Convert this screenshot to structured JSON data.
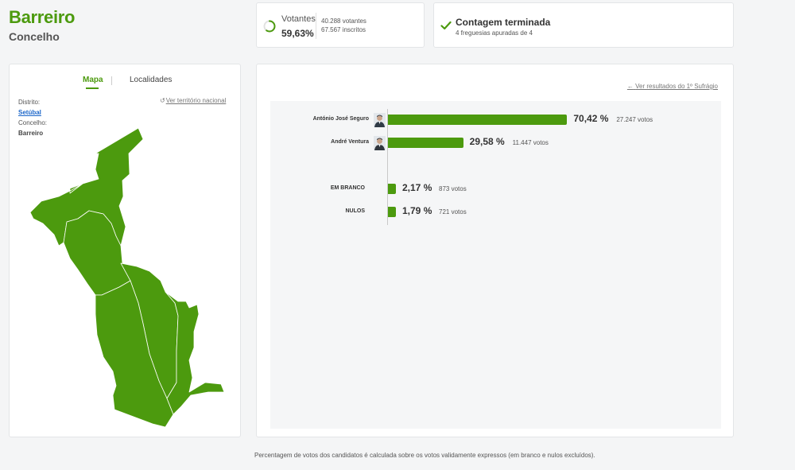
{
  "header": {
    "title": "Barreiro",
    "subtitle": "Concelho"
  },
  "votantes": {
    "label": "Votantes",
    "percent": "59,63%",
    "turnout_fraction": 0.5963,
    "votantes_line": "40.288 votantes",
    "inscritos_line": "67.567 inscritos"
  },
  "contagem": {
    "title": "Contagem terminada",
    "subtitle": "4 freguesias apuradas de 4"
  },
  "map_panel": {
    "tabs": [
      {
        "label": "Mapa",
        "active": true
      },
      {
        "label": "Localidades",
        "active": false
      }
    ],
    "territorio_link": "Ver território nacional",
    "distrito_label": "Distrito:",
    "distrito_value": "Setúbal",
    "concelho_label": "Concelho:",
    "concelho_value": "Barreiro",
    "map_color": "#4c9a0e"
  },
  "results": {
    "first_round_link": "Ver resultados do 1º Sufrágio",
    "bar_color": "#4c9a0e",
    "rows": [
      {
        "label": "António José Seguro",
        "percent": 70.42,
        "percent_label": "70,42 %",
        "votes_label": "27.247 votos",
        "has_avatar": true
      },
      {
        "label": "André Ventura",
        "percent": 29.58,
        "percent_label": "29,58 %",
        "votes_label": "11.447 votos",
        "has_avatar": true
      },
      {
        "label": "EM BRANCO",
        "percent": 2.17,
        "percent_label": "2,17 %",
        "votes_label": "873 votos",
        "has_avatar": false
      },
      {
        "label": "NULOS",
        "percent": 1.79,
        "percent_label": "1,79 %",
        "votes_label": "721 votos",
        "has_avatar": false
      }
    ]
  },
  "footnote": "Percentagem de votos dos candidatos é calculada sobre os votos validamente expressos (em branco e nulos excluídos)."
}
